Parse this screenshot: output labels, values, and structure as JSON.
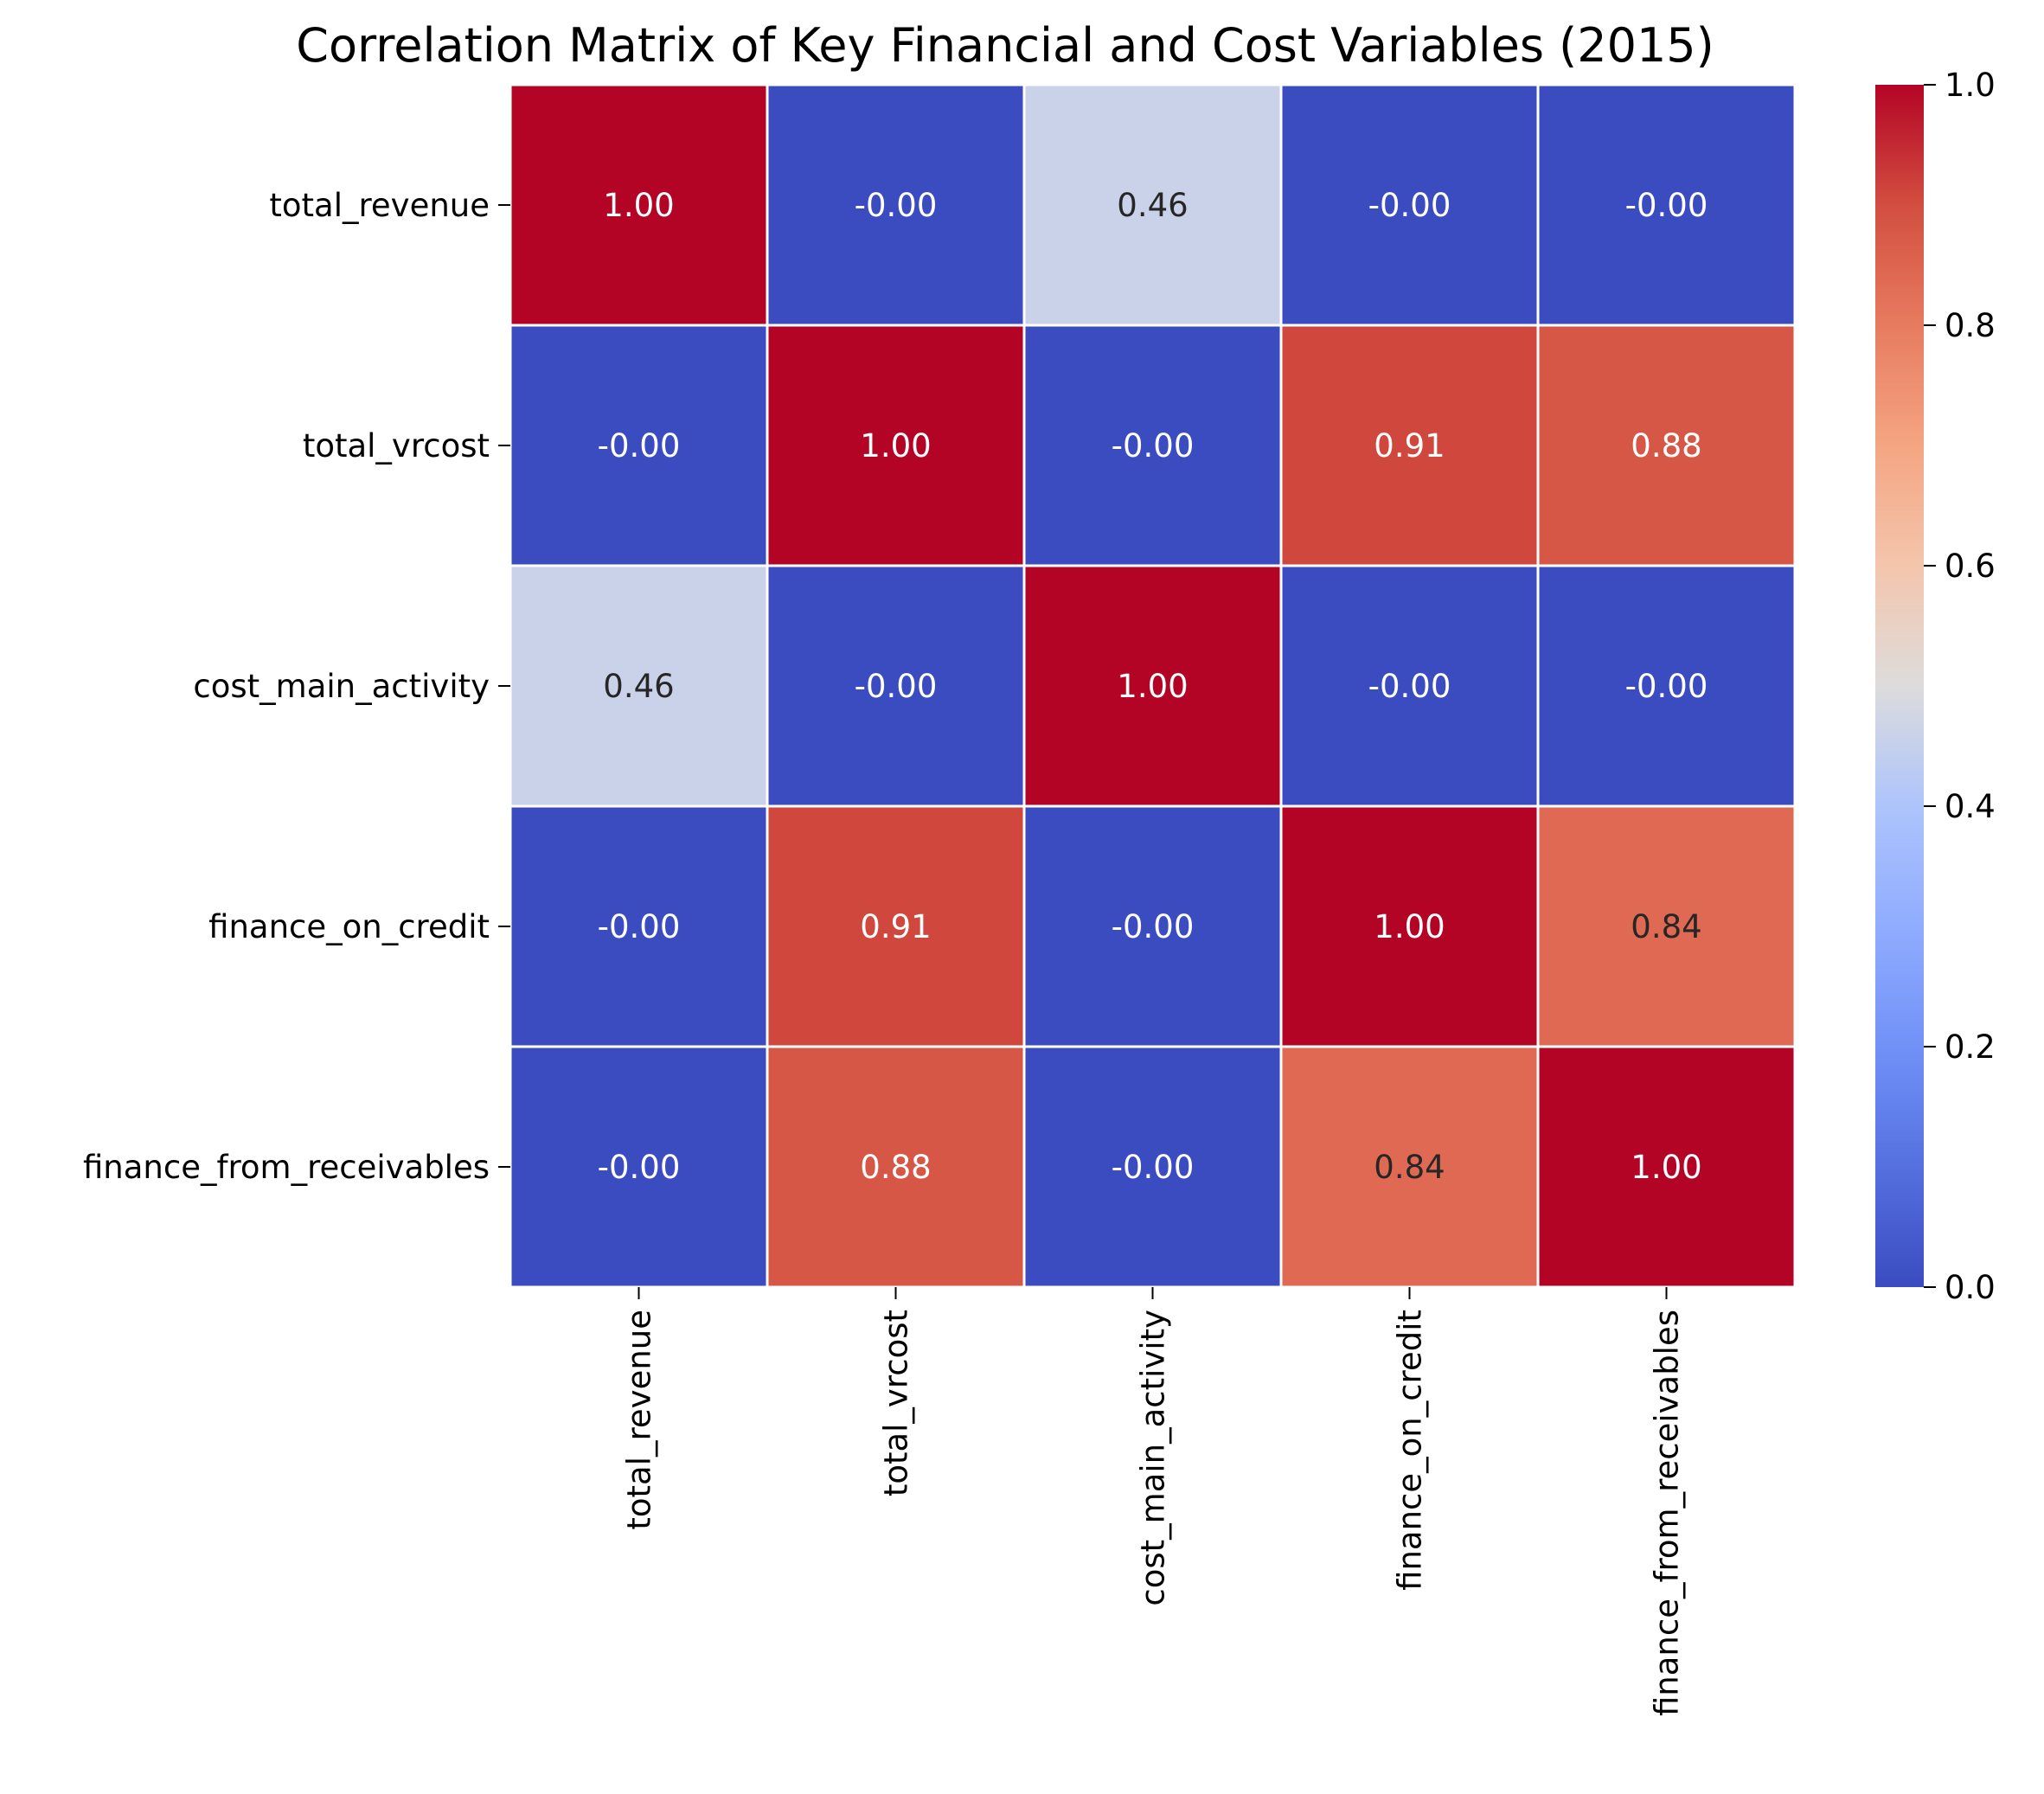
{
  "chart_data": {
    "type": "heatmap",
    "title": "Correlation Matrix of Key Financial and Cost Variables (2015)",
    "row_labels": [
      "total_revenue",
      "total_vrcost",
      "cost_main_activity",
      "finance_on_credit",
      "finance_from_receivables"
    ],
    "col_labels": [
      "total_revenue",
      "total_vrcost",
      "cost_main_activity",
      "finance_on_credit",
      "finance_from_receivables"
    ],
    "values": [
      [
        1.0,
        0.0,
        0.46,
        0.0,
        0.0
      ],
      [
        0.0,
        1.0,
        0.0,
        0.91,
        0.88
      ],
      [
        0.46,
        0.0,
        1.0,
        0.0,
        0.0
      ],
      [
        0.0,
        0.91,
        0.0,
        1.0,
        0.84
      ],
      [
        0.0,
        0.88,
        0.0,
        0.84,
        1.0
      ]
    ],
    "annotations": [
      [
        "1.00",
        "-0.00",
        "0.46",
        "-0.00",
        "-0.00"
      ],
      [
        "-0.00",
        "1.00",
        "-0.00",
        "0.91",
        "0.88"
      ],
      [
        "0.46",
        "-0.00",
        "1.00",
        "-0.00",
        "-0.00"
      ],
      [
        "-0.00",
        "0.91",
        "-0.00",
        "1.00",
        "0.84"
      ],
      [
        "-0.00",
        "0.88",
        "-0.00",
        "0.84",
        "1.00"
      ]
    ],
    "colormap": "coolwarm",
    "vmin": 0.0,
    "vmax": 1.0,
    "colorbar_ticks": [
      "0.0",
      "0.2",
      "0.4",
      "0.6",
      "0.8",
      "1.0"
    ],
    "colorbar_tick_values": [
      0.0,
      0.2,
      0.4,
      0.6,
      0.8,
      1.0
    ],
    "cell_border_color": "#ffffff",
    "annotation_colors": {
      "dark": "#262626",
      "light": "#ffffff"
    }
  }
}
